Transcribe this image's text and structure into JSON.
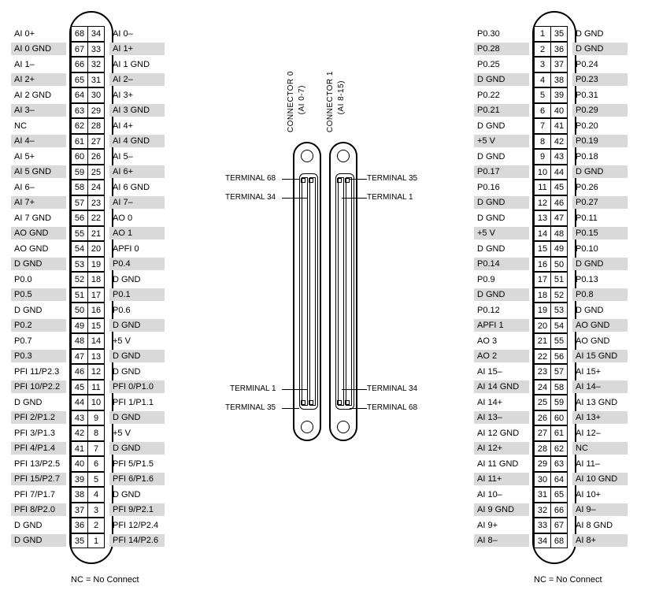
{
  "note": "NC = No Connect",
  "leftTable": {
    "rows": [
      {
        "left": "AI 0+",
        "p1": "68",
        "p2": "34",
        "right": "AI 0–",
        "ls": false,
        "rs": false
      },
      {
        "left": "AI 0 GND",
        "p1": "67",
        "p2": "33",
        "right": "AI 1+",
        "ls": true,
        "rs": true
      },
      {
        "left": "AI 1–",
        "p1": "66",
        "p2": "32",
        "right": "AI 1 GND",
        "ls": false,
        "rs": false
      },
      {
        "left": "AI 2+",
        "p1": "65",
        "p2": "31",
        "right": "AI 2–",
        "ls": true,
        "rs": true
      },
      {
        "left": "AI 2 GND",
        "p1": "64",
        "p2": "30",
        "right": "AI 3+",
        "ls": false,
        "rs": false
      },
      {
        "left": "AI 3–",
        "p1": "63",
        "p2": "29",
        "right": "AI 3 GND",
        "ls": true,
        "rs": true
      },
      {
        "left": "NC",
        "p1": "62",
        "p2": "28",
        "right": "AI 4+",
        "ls": false,
        "rs": false
      },
      {
        "left": "AI 4–",
        "p1": "61",
        "p2": "27",
        "right": "AI 4 GND",
        "ls": true,
        "rs": true
      },
      {
        "left": "AI 5+",
        "p1": "60",
        "p2": "26",
        "right": "AI 5–",
        "ls": false,
        "rs": false
      },
      {
        "left": "AI 5 GND",
        "p1": "59",
        "p2": "25",
        "right": "AI 6+",
        "ls": true,
        "rs": true
      },
      {
        "left": "AI 6–",
        "p1": "58",
        "p2": "24",
        "right": "AI 6 GND",
        "ls": false,
        "rs": false
      },
      {
        "left": "AI 7+",
        "p1": "57",
        "p2": "23",
        "right": "AI 7–",
        "ls": true,
        "rs": true
      },
      {
        "left": "AI 7 GND",
        "p1": "56",
        "p2": "22",
        "right": "AO 0",
        "ls": false,
        "rs": false
      },
      {
        "left": "AO GND",
        "p1": "55",
        "p2": "21",
        "right": "AO 1",
        "ls": true,
        "rs": true
      },
      {
        "left": "AO GND",
        "p1": "54",
        "p2": "20",
        "right": "APFI 0",
        "ls": false,
        "rs": false
      },
      {
        "left": "D GND",
        "p1": "53",
        "p2": "19",
        "right": "P0.4",
        "ls": true,
        "rs": true
      },
      {
        "left": "P0.0",
        "p1": "52",
        "p2": "18",
        "right": "D GND",
        "ls": false,
        "rs": false
      },
      {
        "left": "P0.5",
        "p1": "51",
        "p2": "17",
        "right": "P0.1",
        "ls": true,
        "rs": true
      },
      {
        "left": "D GND",
        "p1": "50",
        "p2": "16",
        "right": "P0.6",
        "ls": false,
        "rs": false
      },
      {
        "left": "P0.2",
        "p1": "49",
        "p2": "15",
        "right": "D GND",
        "ls": true,
        "rs": true
      },
      {
        "left": "P0.7",
        "p1": "48",
        "p2": "14",
        "right": "+5 V",
        "ls": false,
        "rs": false
      },
      {
        "left": "P0.3",
        "p1": "47",
        "p2": "13",
        "right": "D GND",
        "ls": true,
        "rs": true
      },
      {
        "left": "PFI 11/P2.3",
        "p1": "46",
        "p2": "12",
        "right": "D GND",
        "ls": false,
        "rs": false
      },
      {
        "left": "PFI 10/P2.2",
        "p1": "45",
        "p2": "11",
        "right": "PFI 0/P1.0",
        "ls": true,
        "rs": true
      },
      {
        "left": "D GND",
        "p1": "44",
        "p2": "10",
        "right": "PFI 1/P1.1",
        "ls": false,
        "rs": false
      },
      {
        "left": "PFI 2/P1.2",
        "p1": "43",
        "p2": "9",
        "right": "D GND",
        "ls": true,
        "rs": true
      },
      {
        "left": "PFI 3/P1.3",
        "p1": "42",
        "p2": "8",
        "right": "+5 V",
        "ls": false,
        "rs": false
      },
      {
        "left": "PFI 4/P1.4",
        "p1": "41",
        "p2": "7",
        "right": "D GND",
        "ls": true,
        "rs": true
      },
      {
        "left": "PFI 13/P2.5",
        "p1": "40",
        "p2": "6",
        "right": "PFI 5/P1.5",
        "ls": false,
        "rs": false
      },
      {
        "left": "PFI 15/P2.7",
        "p1": "39",
        "p2": "5",
        "right": "PFI 6/P1.6",
        "ls": true,
        "rs": true
      },
      {
        "left": "PFI 7/P1.7",
        "p1": "38",
        "p2": "4",
        "right": "D GND",
        "ls": false,
        "rs": false
      },
      {
        "left": "PFI 8/P2.0",
        "p1": "37",
        "p2": "3",
        "right": "PFI 9/P2.1",
        "ls": true,
        "rs": true
      },
      {
        "left": "D GND",
        "p1": "36",
        "p2": "2",
        "right": "PFI 12/P2.4",
        "ls": false,
        "rs": false
      },
      {
        "left": "D GND",
        "p1": "35",
        "p2": "1",
        "right": "PFI 14/P2.6",
        "ls": true,
        "rs": true
      }
    ]
  },
  "rightTable": {
    "rows": [
      {
        "left": "P0.30",
        "p1": "1",
        "p2": "35",
        "right": "D GND",
        "ls": false,
        "rs": false
      },
      {
        "left": "P0.28",
        "p1": "2",
        "p2": "36",
        "right": "D GND",
        "ls": true,
        "rs": true
      },
      {
        "left": "P0.25",
        "p1": "3",
        "p2": "37",
        "right": "P0.24",
        "ls": false,
        "rs": false
      },
      {
        "left": "D GND",
        "p1": "4",
        "p2": "38",
        "right": "P0.23",
        "ls": true,
        "rs": true
      },
      {
        "left": "P0.22",
        "p1": "5",
        "p2": "39",
        "right": "P0.31",
        "ls": false,
        "rs": false
      },
      {
        "left": "P0.21",
        "p1": "6",
        "p2": "40",
        "right": "P0.29",
        "ls": true,
        "rs": true
      },
      {
        "left": "D GND",
        "p1": "7",
        "p2": "41",
        "right": "P0.20",
        "ls": false,
        "rs": false
      },
      {
        "left": "+5 V",
        "p1": "8",
        "p2": "42",
        "right": "P0.19",
        "ls": true,
        "rs": true
      },
      {
        "left": "D GND",
        "p1": "9",
        "p2": "43",
        "right": "P0.18",
        "ls": false,
        "rs": false
      },
      {
        "left": "P0.17",
        "p1": "10",
        "p2": "44",
        "right": "D GND",
        "ls": true,
        "rs": true
      },
      {
        "left": "P0.16",
        "p1": "11",
        "p2": "45",
        "right": "P0.26",
        "ls": false,
        "rs": false
      },
      {
        "left": "D GND",
        "p1": "12",
        "p2": "46",
        "right": "P0.27",
        "ls": true,
        "rs": true
      },
      {
        "left": "D GND",
        "p1": "13",
        "p2": "47",
        "right": "P0.11",
        "ls": false,
        "rs": false
      },
      {
        "left": "+5 V",
        "p1": "14",
        "p2": "48",
        "right": "P0.15",
        "ls": true,
        "rs": true
      },
      {
        "left": "D GND",
        "p1": "15",
        "p2": "49",
        "right": "P0.10",
        "ls": false,
        "rs": false
      },
      {
        "left": "P0.14",
        "p1": "16",
        "p2": "50",
        "right": "D GND",
        "ls": true,
        "rs": true
      },
      {
        "left": "P0.9",
        "p1": "17",
        "p2": "51",
        "right": "P0.13",
        "ls": false,
        "rs": false
      },
      {
        "left": "D GND",
        "p1": "18",
        "p2": "52",
        "right": "P0.8",
        "ls": true,
        "rs": true
      },
      {
        "left": "P0.12",
        "p1": "19",
        "p2": "53",
        "right": "D GND",
        "ls": false,
        "rs": false
      },
      {
        "left": "APFI 1",
        "p1": "20",
        "p2": "54",
        "right": "AO GND",
        "ls": true,
        "rs": true
      },
      {
        "left": "AO 3",
        "p1": "21",
        "p2": "55",
        "right": "AO GND",
        "ls": false,
        "rs": false
      },
      {
        "left": "AO 2",
        "p1": "22",
        "p2": "56",
        "right": "AI 15 GND",
        "ls": true,
        "rs": true
      },
      {
        "left": "AI 15–",
        "p1": "23",
        "p2": "57",
        "right": "AI 15+",
        "ls": false,
        "rs": false
      },
      {
        "left": "AI 14 GND",
        "p1": "24",
        "p2": "58",
        "right": "AI 14–",
        "ls": true,
        "rs": true
      },
      {
        "left": "AI 14+",
        "p1": "25",
        "p2": "59",
        "right": "AI 13 GND",
        "ls": false,
        "rs": false
      },
      {
        "left": "AI 13–",
        "p1": "26",
        "p2": "60",
        "right": "AI 13+",
        "ls": true,
        "rs": true
      },
      {
        "left": "AI 12 GND",
        "p1": "27",
        "p2": "61",
        "right": "AI 12–",
        "ls": false,
        "rs": false
      },
      {
        "left": "AI 12+",
        "p1": "28",
        "p2": "62",
        "right": "NC",
        "ls": true,
        "rs": true
      },
      {
        "left": "AI 11 GND",
        "p1": "29",
        "p2": "63",
        "right": "AI 11–",
        "ls": false,
        "rs": false
      },
      {
        "left": "AI 11+",
        "p1": "30",
        "p2": "64",
        "right": "AI 10 GND",
        "ls": true,
        "rs": true
      },
      {
        "left": "AI 10–",
        "p1": "31",
        "p2": "65",
        "right": "AI 10+",
        "ls": false,
        "rs": false
      },
      {
        "left": "AI 9 GND",
        "p1": "32",
        "p2": "66",
        "right": "AI 9–",
        "ls": true,
        "rs": true
      },
      {
        "left": "AI 9+",
        "p1": "33",
        "p2": "67",
        "right": "AI 8 GND",
        "ls": false,
        "rs": false
      },
      {
        "left": "AI 8–",
        "p1": "34",
        "p2": "68",
        "right": "AI 8+",
        "ls": true,
        "rs": true
      }
    ]
  },
  "center": {
    "conn0": {
      "label": "CONNECTOR 0",
      "sub": "(AI 0-7)"
    },
    "conn1": {
      "label": "CONNECTOR 1",
      "sub": "(AI 8-15)"
    },
    "terms": {
      "t68": "TERMINAL 68",
      "t34": "TERMINAL 34",
      "t1": "TERMINAL 1",
      "t35": "TERMINAL 35"
    }
  }
}
